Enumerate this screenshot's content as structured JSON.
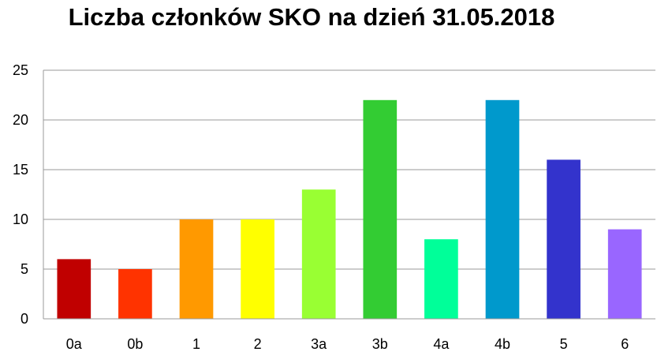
{
  "chart_data": {
    "type": "bar",
    "title": "Liczba członków SKO na dzień 31.05.2018",
    "xlabel": "",
    "ylabel": "",
    "categories": [
      "0a",
      "0b",
      "1",
      "2",
      "3a",
      "3b",
      "4a",
      "4b",
      "5",
      "6"
    ],
    "values": [
      6,
      5,
      10,
      10,
      13,
      22,
      8,
      22,
      16,
      9
    ],
    "colors": [
      "#C00000",
      "#FF3300",
      "#FF9900",
      "#FFFF00",
      "#99FF33",
      "#33CC33",
      "#00FF99",
      "#0099CC",
      "#3333CC",
      "#9966FF"
    ],
    "ylim": [
      0,
      25
    ],
    "yticks": [
      0,
      5,
      10,
      15,
      20,
      25
    ],
    "grid": true,
    "legend": "none"
  }
}
